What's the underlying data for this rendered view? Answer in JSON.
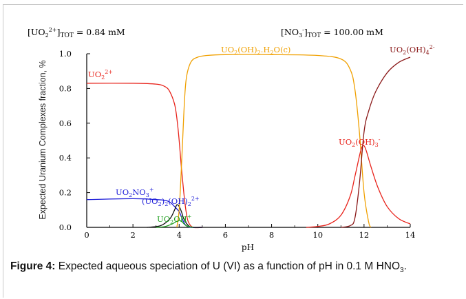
{
  "caption": {
    "label": "Figure 4:",
    "text": "Expected aqueous speciation of U (VI) as a function of pH in 0.1 M HNO",
    "sub": "3",
    "end": "."
  },
  "header": {
    "left": "[UO2 2+]TOT =   0.84 mM",
    "right": "[NO3 -]TOT =  100.00 mM"
  },
  "colors": {
    "UO2 2+": "#e8221a",
    "UO2NO3+": "#1a1ad8",
    "(UO2)2(OH)2 2+": "#101010",
    "UO2OH+": "#20a020",
    "UO2(OH)2.H2O(c)": "#f0a000",
    "UO2(OH)3-": "#e8221a",
    "UO2(OH)4 2-": "#8a1818",
    "axis": "#000000"
  },
  "chart_data": {
    "type": "line",
    "title": "",
    "xlabel": "pH",
    "ylabel": "Expected Uranium Complexes fraction, %",
    "xlim": [
      0,
      14
    ],
    "ylim": [
      0,
      1.0
    ],
    "xticks": [
      0,
      2,
      4,
      6,
      8,
      10,
      12,
      14
    ],
    "yticks": [
      0.0,
      0.2,
      0.4,
      0.6,
      0.8,
      1.0
    ],
    "ytick_labels": [
      "0.0",
      "0.2",
      "0.4",
      "0.6",
      "0.8",
      "1.0"
    ],
    "grid": false,
    "series": [
      {
        "name": "UO2 2+",
        "color": "#e8221a",
        "x": [
          0,
          2,
          3,
          3.4,
          3.6,
          3.8,
          3.9,
          4.0,
          4.1,
          4.2,
          4.3,
          4.4,
          4.6,
          5.0
        ],
        "y": [
          0.83,
          0.83,
          0.825,
          0.81,
          0.78,
          0.71,
          0.63,
          0.5,
          0.34,
          0.2,
          0.09,
          0.03,
          0.0,
          0.0
        ]
      },
      {
        "name": "UO2NO3+",
        "color": "#1a1ad8",
        "x": [
          0,
          2,
          3,
          3.4,
          3.6,
          3.8,
          4.0,
          4.1,
          4.2,
          4.3,
          4.5,
          5.0
        ],
        "y": [
          0.16,
          0.165,
          0.16,
          0.155,
          0.145,
          0.12,
          0.09,
          0.06,
          0.03,
          0.01,
          0.0,
          0.0
        ]
      },
      {
        "name": "(UO2)2(OH)2 2+",
        "color": "#101010",
        "x": [
          2.6,
          3.2,
          3.6,
          3.8,
          3.9,
          4.0,
          4.1,
          4.2,
          4.4,
          4.6,
          5.0
        ],
        "y": [
          0.0,
          0.01,
          0.05,
          0.1,
          0.13,
          0.12,
          0.09,
          0.05,
          0.01,
          0.0,
          0.0
        ]
      },
      {
        "name": "UO2OH+",
        "color": "#20a020",
        "x": [
          3.0,
          3.4,
          3.7,
          3.9,
          4.0,
          4.1,
          4.3,
          4.6
        ],
        "y": [
          0.0,
          0.005,
          0.02,
          0.035,
          0.04,
          0.035,
          0.01,
          0.0
        ]
      },
      {
        "name": "UO2(OH)2.H2O(c)",
        "color": "#f0a000",
        "x": [
          3.9,
          4.0,
          4.1,
          4.2,
          4.3,
          4.5,
          4.8,
          5.2,
          6,
          8,
          10,
          11,
          11.4,
          11.6,
          11.8,
          12.0,
          12.2,
          12.3
        ],
        "y": [
          0.0,
          0.1,
          0.35,
          0.65,
          0.85,
          0.95,
          0.98,
          0.99,
          0.995,
          0.995,
          0.99,
          0.97,
          0.91,
          0.8,
          0.55,
          0.2,
          0.03,
          0.0
        ]
      },
      {
        "name": "UO2(OH)3-",
        "color": "#e8221a",
        "x": [
          9.5,
          10.0,
          10.5,
          11.0,
          11.4,
          11.6,
          11.8,
          11.9,
          12.0,
          12.1,
          12.3,
          12.6,
          13.0,
          13.5,
          14
        ],
        "y": [
          0.0,
          0.005,
          0.02,
          0.07,
          0.18,
          0.29,
          0.41,
          0.46,
          0.47,
          0.44,
          0.35,
          0.23,
          0.12,
          0.05,
          0.02
        ]
      },
      {
        "name": "UO2(OH)4 2-",
        "color": "#8a1818",
        "x": [
          11.0,
          11.4,
          11.6,
          11.8,
          12.0,
          12.2,
          12.5,
          13.0,
          13.5,
          14
        ],
        "y": [
          0.0,
          0.01,
          0.05,
          0.25,
          0.55,
          0.67,
          0.78,
          0.89,
          0.95,
          0.98
        ]
      }
    ]
  }
}
